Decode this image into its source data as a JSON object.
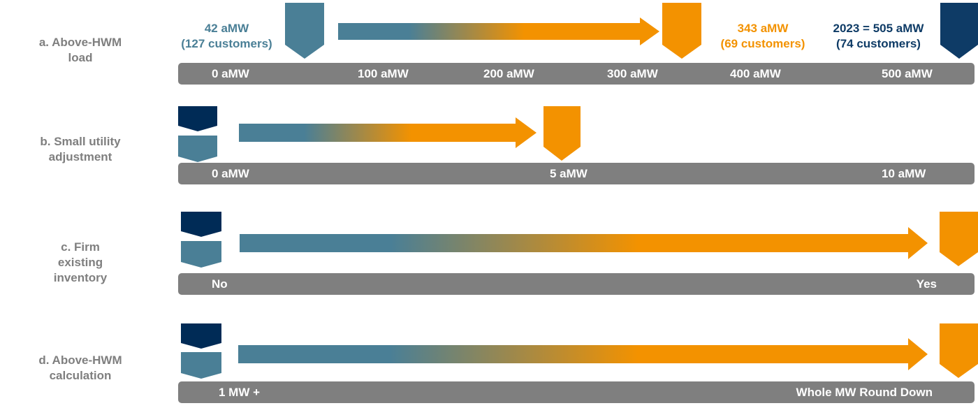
{
  "colors": {
    "teal": "#4a7f96",
    "orange": "#f39200",
    "navy": "#002b56",
    "navy_mid": "#0e3b66",
    "bar_gray": "#7f7f7f",
    "label_gray": "#7f7f7f"
  },
  "rows": [
    {
      "label_line1": "a. Above-HWM",
      "label_line2": "load",
      "ticks": [
        "0 aMW",
        "100 aMW",
        "200 aMW",
        "300 aMW",
        "400 aMW",
        "500 aMW"
      ],
      "annotations": {
        "teal_line1": "42 aMW",
        "teal_line2": "(127 customers)",
        "orange_line1": "343 aMW",
        "orange_line2": "(69 customers)",
        "navy_line1": "2023 = 505 aMW",
        "navy_line2": "(74 customers)"
      }
    },
    {
      "label_line1": "b. Small utility",
      "label_line2": "adjustment",
      "ticks": [
        "0 aMW",
        "5 aMW",
        "10 aMW"
      ]
    },
    {
      "label_line1": "c. Firm",
      "label_line2": "existing",
      "label_line3": "inventory",
      "ticks": [
        "No",
        "Yes"
      ]
    },
    {
      "label_line1": "d. Above-HWM",
      "label_line2": "calculation",
      "ticks": [
        "1 MW +",
        "Whole MW Round Down"
      ]
    }
  ]
}
